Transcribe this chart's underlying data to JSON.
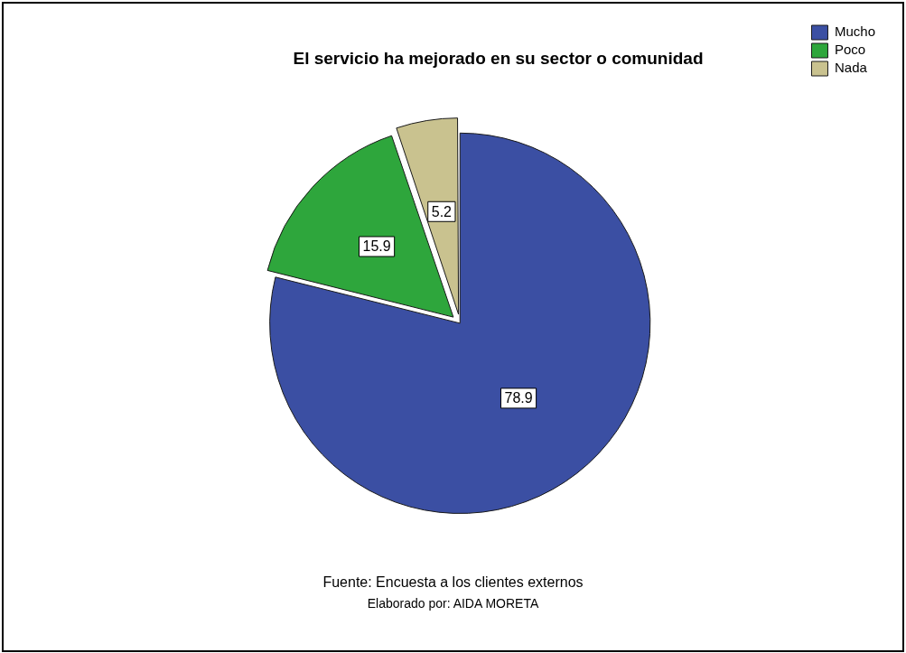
{
  "chart_data": {
    "type": "pie",
    "title": "El servicio ha mejorado en su sector o comunidad",
    "categories": [
      "Mucho",
      "Poco",
      "Nada"
    ],
    "values": [
      78.9,
      15.9,
      5.2
    ],
    "colors": [
      "#3b4fa3",
      "#2ea63c",
      "#c9c28f"
    ],
    "data_labels": true,
    "legend": "top right",
    "annotations": [
      "Fuente: Encuesta a los clientes externos",
      "Elaborado por: AIDA MORETA"
    ]
  }
}
